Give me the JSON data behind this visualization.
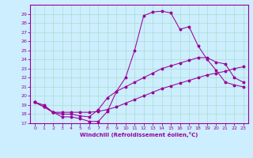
{
  "xlabel": "Windchill (Refroidissement éolien,°C)",
  "bg_color": "#cceeff",
  "line_color": "#990099",
  "grid_color": "#aaddcc",
  "axis_color": "#990099",
  "xlim": [
    -0.5,
    23.5
  ],
  "ylim": [
    17,
    30
  ],
  "xticks": [
    0,
    1,
    2,
    3,
    4,
    5,
    6,
    7,
    8,
    9,
    10,
    11,
    12,
    13,
    14,
    15,
    16,
    17,
    18,
    19,
    20,
    21,
    22,
    23
  ],
  "yticks": [
    17,
    18,
    19,
    20,
    21,
    22,
    23,
    24,
    25,
    26,
    27,
    28,
    29
  ],
  "curve1_x": [
    0,
    1,
    2,
    3,
    4,
    5,
    6,
    7,
    8,
    9,
    10,
    11,
    12,
    13,
    14,
    15,
    16,
    17,
    18,
    19,
    20,
    21,
    22,
    23
  ],
  "curve1_y": [
    19.3,
    19.0,
    18.2,
    17.7,
    17.7,
    17.5,
    17.2,
    17.2,
    18.3,
    20.5,
    22.0,
    25.0,
    28.8,
    29.2,
    29.3,
    29.1,
    27.3,
    27.6,
    25.5,
    24.0,
    22.8,
    21.5,
    21.2,
    21.0
  ],
  "curve2_x": [
    0,
    1,
    2,
    3,
    4,
    5,
    6,
    7,
    8,
    9,
    10,
    11,
    12,
    13,
    14,
    15,
    16,
    17,
    18,
    19,
    20,
    21,
    22,
    23
  ],
  "curve2_y": [
    19.3,
    18.8,
    18.2,
    18.0,
    18.0,
    17.8,
    17.7,
    18.5,
    19.8,
    20.5,
    21.0,
    21.5,
    22.0,
    22.5,
    23.0,
    23.3,
    23.6,
    23.9,
    24.2,
    24.2,
    23.7,
    23.5,
    22.0,
    21.5
  ],
  "curve3_x": [
    0,
    1,
    2,
    3,
    4,
    5,
    6,
    7,
    8,
    9,
    10,
    11,
    12,
    13,
    14,
    15,
    16,
    17,
    18,
    19,
    20,
    21,
    22,
    23
  ],
  "curve3_y": [
    19.3,
    18.8,
    18.2,
    18.2,
    18.2,
    18.2,
    18.2,
    18.3,
    18.5,
    18.8,
    19.2,
    19.6,
    20.0,
    20.4,
    20.8,
    21.1,
    21.4,
    21.7,
    22.0,
    22.3,
    22.5,
    22.7,
    23.0,
    23.2
  ]
}
